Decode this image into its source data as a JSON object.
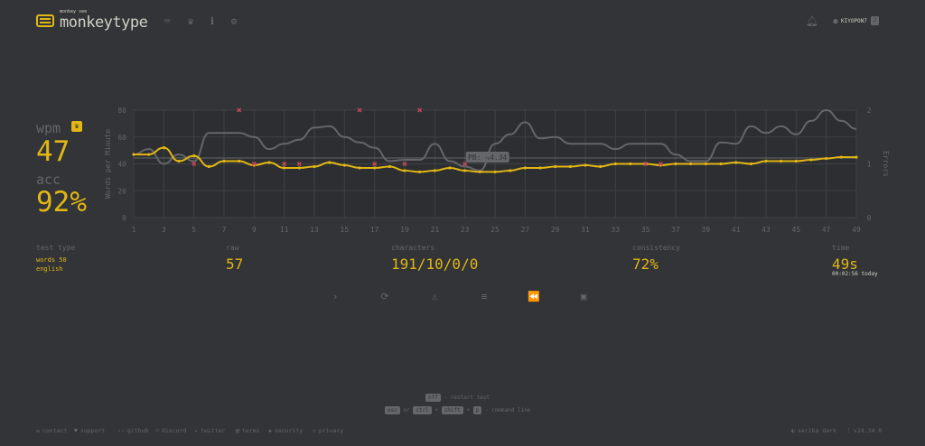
{
  "header": {
    "brand_small": "monkey see",
    "brand": "monkeytype",
    "nav_icons": [
      "keyboard-icon",
      "crown-icon",
      "info-icon",
      "gear-icon"
    ],
    "username": "KIYOPON7",
    "level": "2"
  },
  "stats": {
    "wpm_label": "wpm",
    "wpm": "47",
    "acc_label": "acc",
    "acc": "92%",
    "test_type_label": "test type",
    "test_type_lines": [
      "words 50",
      "english"
    ],
    "raw_label": "raw",
    "raw": "57",
    "characters_label": "characters",
    "characters": "191/10/0/0",
    "consistency_label": "consistency",
    "consistency": "72%",
    "time_label": "time",
    "time": "49s",
    "time_detail": "00:02:56 today"
  },
  "chart_data": {
    "type": "line",
    "x": [
      1,
      2,
      3,
      4,
      5,
      6,
      7,
      8,
      9,
      10,
      11,
      12,
      13,
      14,
      15,
      16,
      17,
      18,
      19,
      20,
      21,
      22,
      23,
      24,
      25,
      26,
      27,
      28,
      29,
      30,
      31,
      32,
      33,
      34,
      35,
      36,
      37,
      38,
      39,
      40,
      41,
      42,
      43,
      44,
      45,
      46,
      47,
      48,
      49
    ],
    "x_ticks": [
      1,
      3,
      5,
      7,
      9,
      11,
      13,
      15,
      17,
      19,
      21,
      23,
      25,
      27,
      29,
      31,
      33,
      35,
      37,
      39,
      41,
      43,
      45,
      47,
      49
    ],
    "ylabel": "Words per Minute",
    "ylim": [
      0,
      80
    ],
    "y_ticks": [
      0,
      20,
      40,
      60,
      80
    ],
    "y2label": "Errors",
    "y2lim": [
      0,
      2
    ],
    "y2_ticks": [
      0,
      1,
      2
    ],
    "pb_label": "PB: 44.34",
    "pb_value": 44.34,
    "series": [
      {
        "role": "wpm",
        "color": "#e2b714",
        "values": [
          47,
          47,
          52,
          42,
          46,
          38,
          42,
          42,
          39,
          41,
          37,
          37,
          38,
          41,
          39,
          37,
          37,
          38,
          35,
          34,
          35,
          37,
          35,
          34,
          34,
          35,
          37,
          37,
          38,
          38,
          39,
          38,
          40,
          40,
          40,
          39,
          40,
          40,
          40,
          40,
          41,
          40,
          42,
          42,
          42,
          43,
          44,
          45,
          45
        ]
      },
      {
        "role": "raw",
        "color": "#646669",
        "values": [
          47,
          51,
          40,
          47,
          42,
          63,
          63,
          63,
          60,
          51,
          55,
          58,
          67,
          68,
          60,
          56,
          52,
          42,
          43,
          43,
          55,
          42,
          38,
          35,
          55,
          62,
          71,
          59,
          60,
          55,
          55,
          55,
          51,
          55,
          55,
          55,
          47,
          42,
          42,
          56,
          55,
          68,
          63,
          68,
          62,
          72,
          80,
          72,
          66
        ]
      }
    ],
    "errors": [
      {
        "x": 5,
        "y2": 1
      },
      {
        "x": 8,
        "y2": 2
      },
      {
        "x": 9,
        "y2": 1
      },
      {
        "x": 11,
        "y2": 1
      },
      {
        "x": 12,
        "y2": 1
      },
      {
        "x": 16,
        "y2": 2
      },
      {
        "x": 17,
        "y2": 1
      },
      {
        "x": 19,
        "y2": 1
      },
      {
        "x": 20,
        "y2": 2
      },
      {
        "x": 23,
        "y2": 1
      },
      {
        "x": 35,
        "y2": 1
      },
      {
        "x": 36,
        "y2": 1
      }
    ],
    "grid": true
  },
  "actions": [
    "next-test-icon",
    "restart-icon",
    "warning-icon",
    "words-history-icon",
    "replay-icon",
    "screenshot-icon"
  ],
  "hints": {
    "line1_key": "off",
    "line1_text": "- restart test",
    "line2_key1": "esc",
    "line2_or": "or",
    "line2_key2": "ctrl",
    "line2_plus1": "+",
    "line2_key3": "shift",
    "line2_plus2": "+",
    "line2_key4": "p",
    "line2_text": "- command line"
  },
  "footer": {
    "links": [
      "contact",
      "support",
      "github",
      "discord",
      "twitter",
      "terms",
      "security",
      "privacy"
    ],
    "theme": "serika dark",
    "version": "v24.34.0"
  }
}
